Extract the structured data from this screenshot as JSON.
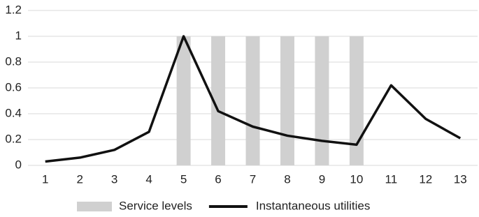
{
  "chart_data": {
    "type": "combo",
    "categories": [
      "1",
      "2",
      "3",
      "4",
      "5",
      "6",
      "7",
      "8",
      "9",
      "10",
      "11",
      "12",
      "13"
    ],
    "series": [
      {
        "name": "Service levels",
        "type": "bar",
        "color": "#d0d0d0",
        "values": [
          0,
          0,
          0,
          0,
          1,
          1,
          1,
          1,
          1,
          1,
          0,
          0,
          0
        ]
      },
      {
        "name": "Instantaneous utilities",
        "type": "line",
        "color": "#111111",
        "values": [
          0.03,
          0.06,
          0.12,
          0.26,
          1.0,
          0.42,
          0.3,
          0.23,
          0.19,
          0.16,
          0.62,
          0.36,
          0.21
        ]
      }
    ],
    "ylim": [
      0,
      1.2
    ],
    "yticks": [
      0,
      0.2,
      0.4,
      0.6,
      0.8,
      1,
      1.2
    ],
    "grid": true,
    "legend": "bottom"
  }
}
